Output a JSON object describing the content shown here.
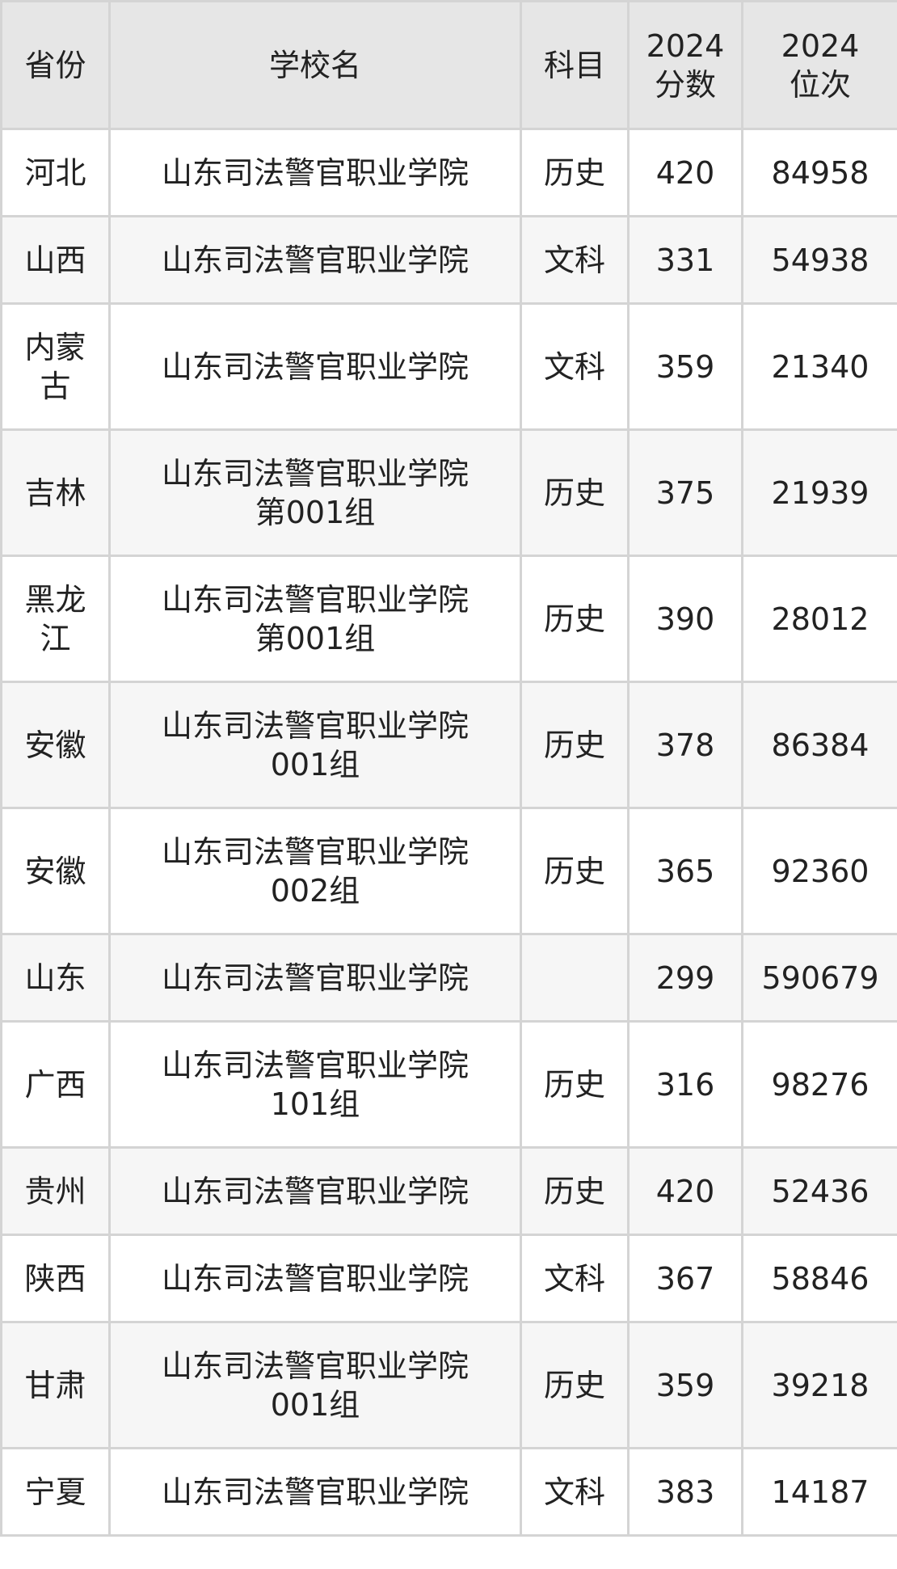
{
  "headers": [
    "省份",
    "学校名",
    "科目",
    "2024\n分数",
    "2024\n位次"
  ],
  "rows": [
    {
      "province": "河北",
      "school": "山东司法警官职业学院",
      "subject": "历史",
      "score": "420",
      "rank": "84958"
    },
    {
      "province": "山西",
      "school": "山东司法警官职业学院",
      "subject": "文科",
      "score": "331",
      "rank": "54938"
    },
    {
      "province": "内蒙\n古",
      "school": "山东司法警官职业学院",
      "subject": "文科",
      "score": "359",
      "rank": "21340"
    },
    {
      "province": "吉林",
      "school": "山东司法警官职业学院\n第001组",
      "subject": "历史",
      "score": "375",
      "rank": "21939"
    },
    {
      "province": "黑龙\n江",
      "school": "山东司法警官职业学院\n第001组",
      "subject": "历史",
      "score": "390",
      "rank": "28012"
    },
    {
      "province": "安徽",
      "school": "山东司法警官职业学院\n001组",
      "subject": "历史",
      "score": "378",
      "rank": "86384"
    },
    {
      "province": "安徽",
      "school": "山东司法警官职业学院\n002组",
      "subject": "历史",
      "score": "365",
      "rank": "92360"
    },
    {
      "province": "山东",
      "school": "山东司法警官职业学院",
      "subject": "",
      "score": "299",
      "rank": "590679"
    },
    {
      "province": "广西",
      "school": "山东司法警官职业学院\n101组",
      "subject": "历史",
      "score": "316",
      "rank": "98276"
    },
    {
      "province": "贵州",
      "school": "山东司法警官职业学院",
      "subject": "历史",
      "score": "420",
      "rank": "52436"
    },
    {
      "province": "陕西",
      "school": "山东司法警官职业学院",
      "subject": "文科",
      "score": "367",
      "rank": "58846"
    },
    {
      "province": "甘肃",
      "school": "山东司法警官职业学院\n001组",
      "subject": "历史",
      "score": "359",
      "rank": "39218"
    },
    {
      "province": "宁夏",
      "school": "山东司法警官职业学院",
      "subject": "文科",
      "score": "383",
      "rank": "14187"
    }
  ]
}
